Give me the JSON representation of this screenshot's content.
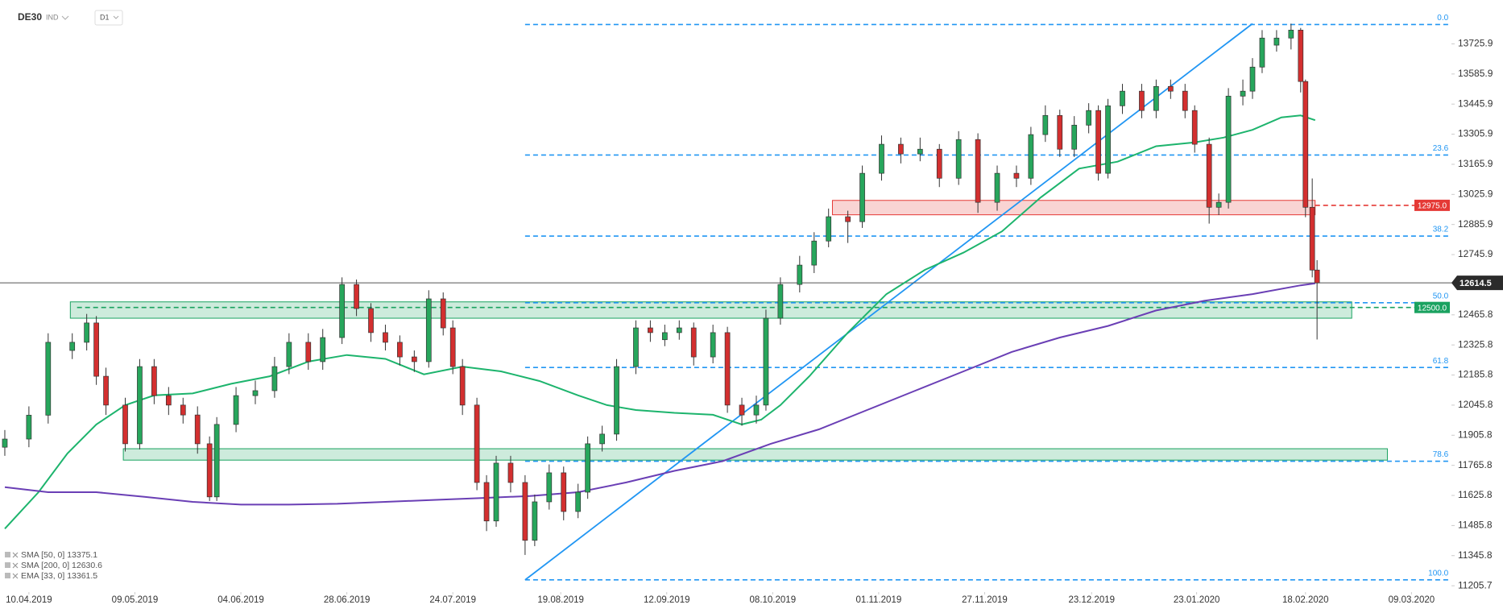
{
  "chart_data": {
    "type": "candlestick",
    "header": {
      "symbol": "DE30",
      "market": "IND",
      "interval": "D1"
    },
    "xlim": [
      0,
      312
    ],
    "ylim": [
      11180,
      13930
    ],
    "xticks": [
      {
        "value": 6,
        "label": "10.04.2019"
      },
      {
        "value": 28,
        "label": "09.05.2019"
      },
      {
        "value": 50,
        "label": "04.06.2019"
      },
      {
        "value": 72,
        "label": "28.06.2019"
      },
      {
        "value": 94,
        "label": "24.07.2019"
      },
      {
        "value": 116.4,
        "label": "19.08.2019"
      },
      {
        "value": 138.4,
        "label": "12.09.2019"
      },
      {
        "value": 160.4,
        "label": "08.10.2019"
      },
      {
        "value": 182.4,
        "label": "01.11.2019"
      },
      {
        "value": 204.4,
        "label": "27.11.2019"
      },
      {
        "value": 226.6,
        "label": "23.12.2019"
      },
      {
        "value": 248.4,
        "label": "23.01.2020"
      },
      {
        "value": 271,
        "label": "18.02.2020"
      },
      {
        "value": 293,
        "label": "09.03.2020"
      }
    ],
    "yticks": [
      13725.9,
      13585.9,
      13445.9,
      13305.9,
      13165.9,
      13025.9,
      12885.9,
      12745.9,
      12465.8,
      12325.8,
      12185.8,
      12045.8,
      11905.8,
      11765.8,
      11625.8,
      11485.8,
      11345.8,
      11205.7
    ],
    "last_price": 12614.5,
    "up_color": "#27a65c",
    "down_color": "#d32f2f",
    "candles": {
      "x": [
        1,
        6,
        10,
        15,
        18,
        20,
        22,
        26,
        29,
        32,
        35,
        38,
        41,
        43.5,
        45,
        49,
        53,
        57,
        60,
        64,
        67,
        71,
        74,
        77,
        80,
        83,
        86,
        89,
        92,
        94,
        96,
        99,
        101,
        103,
        106,
        109,
        111,
        114,
        117,
        120,
        122,
        125,
        128,
        132,
        135,
        138,
        141,
        144,
        148,
        151,
        154,
        157,
        159,
        162,
        166,
        169,
        172,
        176,
        179,
        183,
        187,
        191,
        195,
        199,
        203,
        207,
        211,
        214,
        217,
        220,
        223,
        226,
        228,
        230,
        233,
        237,
        240,
        243,
        246,
        248,
        251,
        253,
        255,
        258,
        260,
        262,
        265,
        268,
        270,
        271,
        272.4,
        273.4
      ],
      "open": [
        11850,
        11888,
        11999,
        12300,
        12338,
        12428,
        12180,
        12046,
        11866,
        12225,
        12090,
        12046,
        12000,
        11866,
        11619,
        11956,
        12090,
        12113,
        12225,
        12338,
        12248,
        12360,
        12607,
        12495,
        12383,
        12338,
        12270,
        12248,
        12540,
        12405,
        12225,
        12046,
        11686,
        11507,
        11776,
        11686,
        11417,
        11596,
        11731,
        11551,
        11641,
        11866,
        11911,
        12225,
        12405,
        12350,
        12383,
        12405,
        12270,
        12383,
        12046,
        12000,
        12046,
        12450,
        12607,
        12697,
        12809,
        12922,
        12899,
        13124,
        13259,
        13214,
        13236,
        13101,
        13281,
        12989,
        13124,
        13101,
        13304,
        13393,
        13236,
        13348,
        13416,
        13124,
        13438,
        13506,
        13416,
        13528,
        13506,
        13416,
        13259,
        12966,
        12989,
        13483,
        13506,
        13618,
        13720,
        13753,
        13790,
        13551,
        12966,
        12674
      ],
      "high": [
        11930,
        12040,
        12380,
        12380,
        12470,
        12460,
        12220,
        12080,
        12260,
        12260,
        12130,
        12080,
        12040,
        11900,
        11990,
        12130,
        12160,
        12270,
        12380,
        12380,
        12400,
        12640,
        12630,
        12520,
        12420,
        12370,
        12300,
        12580,
        12570,
        12440,
        12260,
        12080,
        11720,
        11810,
        11810,
        11720,
        11630,
        11770,
        11760,
        11680,
        11900,
        11950,
        12260,
        12440,
        12440,
        12420,
        12440,
        12430,
        12420,
        12410,
        12080,
        12090,
        12490,
        12640,
        12740,
        12850,
        12960,
        12950,
        13160,
        13300,
        13290,
        13290,
        13260,
        13320,
        13310,
        13160,
        13160,
        13340,
        13440,
        13420,
        13390,
        13450,
        13440,
        13470,
        13540,
        13540,
        13560,
        13560,
        13540,
        13440,
        13290,
        13030,
        13520,
        13560,
        13660,
        13790,
        13790,
        13820,
        13800,
        13560,
        13100,
        12720
      ],
      "low": [
        11810,
        11850,
        11960,
        12260,
        12300,
        12140,
        12000,
        11830,
        11840,
        12050,
        12000,
        11960,
        11820,
        11600,
        11600,
        11920,
        12050,
        12080,
        12190,
        12210,
        12210,
        12330,
        12460,
        12340,
        12300,
        12230,
        12200,
        12220,
        12370,
        12190,
        12000,
        11650,
        11460,
        11480,
        11640,
        11349,
        11390,
        11560,
        11510,
        11520,
        11610,
        11830,
        11880,
        12190,
        12340,
        12320,
        12350,
        12230,
        12240,
        12010,
        11950,
        11960,
        12020,
        12420,
        12570,
        12660,
        12780,
        12800,
        12870,
        13090,
        13170,
        13180,
        13060,
        13070,
        12940,
        12950,
        13060,
        13070,
        13270,
        13200,
        13200,
        13310,
        13090,
        13100,
        13400,
        13380,
        13380,
        13470,
        13380,
        13220,
        12890,
        12930,
        12960,
        13440,
        13470,
        13590,
        13690,
        13700,
        13500,
        12920,
        12640,
        12351
      ],
      "close": [
        11888,
        11999,
        12338,
        12338,
        12428,
        12180,
        12046,
        11866,
        12225,
        12090,
        12046,
        12000,
        11866,
        11619,
        11956,
        12090,
        12113,
        12225,
        12338,
        12248,
        12360,
        12607,
        12495,
        12383,
        12338,
        12270,
        12248,
        12540,
        12405,
        12225,
        12046,
        11686,
        11507,
        11776,
        11686,
        11417,
        11596,
        11731,
        11551,
        11641,
        11866,
        11911,
        12225,
        12405,
        12383,
        12383,
        12405,
        12270,
        12383,
        12046,
        12000,
        12046,
        12450,
        12607,
        12697,
        12809,
        12922,
        12899,
        13124,
        13259,
        13214,
        13236,
        13101,
        13281,
        12989,
        13124,
        13101,
        13304,
        13393,
        13236,
        13348,
        13416,
        13124,
        13438,
        13506,
        13416,
        13528,
        13506,
        13416,
        13259,
        12966,
        12989,
        13483,
        13506,
        13618,
        13753,
        13753,
        13790,
        13551,
        12966,
        12674,
        12614.5
      ]
    },
    "series": [
      {
        "color": "#1db46d",
        "x": [
          1,
          8,
          14,
          20,
          26,
          32,
          40,
          48,
          56,
          64,
          72,
          80,
          88,
          96,
          104,
          112,
          120,
          126,
          132,
          140,
          148,
          154,
          158,
          162,
          168,
          176,
          184,
          192,
          200,
          208,
          216,
          224,
          232,
          240,
          248,
          254,
          260,
          266,
          270,
          273
        ],
        "values": [
          11471,
          11641,
          11821,
          11956,
          12046,
          12091,
          12100,
          12145,
          12180,
          12248,
          12279,
          12261,
          12189,
          12225,
          12203,
          12158,
          12091,
          12046,
          12023,
          12010,
          12001,
          11956,
          11978,
          12046,
          12180,
          12383,
          12562,
          12675,
          12755,
          12854,
          13011,
          13146,
          13178,
          13250,
          13268,
          13290,
          13326,
          13384,
          13393,
          13371
        ]
      },
      {
        "color": "#6a3fb5",
        "x": [
          1,
          10,
          20,
          30,
          40,
          50,
          60,
          70,
          80,
          90,
          100,
          110,
          120,
          130,
          140,
          150,
          160,
          170,
          180,
          190,
          200,
          210,
          220,
          230,
          240,
          250,
          260,
          270,
          273
        ],
        "values": [
          11664,
          11641,
          11641,
          11619,
          11596,
          11583,
          11583,
          11587,
          11596,
          11605,
          11614,
          11623,
          11641,
          11686,
          11740,
          11785,
          11866,
          11933,
          12023,
          12113,
          12203,
          12293,
          12360,
          12414,
          12486,
          12531,
          12562,
          12603,
          12612
        ]
      }
    ],
    "legend": [
      "SMA [50, 0] 13375.1",
      "SMA [200, 0] 12630.6",
      "EMA [33, 0] 13361.5"
    ],
    "trendline": {
      "color": "#2196f3",
      "x": [
        109,
        260
      ],
      "values": [
        11233,
        13820
      ]
    },
    "fib_x": [
      109,
      301
    ],
    "fib_levels": [
      {
        "name": "0.0",
        "price": 13816
      },
      {
        "name": "23.6",
        "price": 13209
      },
      {
        "name": "38.2",
        "price": 12832
      },
      {
        "name": "50.0",
        "price": 12522
      },
      {
        "name": "61.8",
        "price": 12221
      },
      {
        "name": "78.6",
        "price": 11785
      },
      {
        "name": "100.0",
        "price": 11233
      }
    ],
    "levels": [
      {
        "value": 12975,
        "label": "12975.0",
        "color": "#e53935",
        "x_start": 273
      },
      {
        "value": 12500,
        "label": "12500.0",
        "color": "#1aa260",
        "x_start": 16
      }
    ],
    "zones": [
      {
        "x_start": 172.8,
        "x_end": 273,
        "low": 12931,
        "high": 12998,
        "color": "#e53935"
      },
      {
        "x_start": 14.6,
        "x_end": 280.6,
        "low": 12450,
        "high": 12526,
        "color": "#1aa260"
      },
      {
        "x_start": 25.6,
        "x_end": 288,
        "low": 11790,
        "high": 11843,
        "color": "#1aa260"
      }
    ]
  }
}
